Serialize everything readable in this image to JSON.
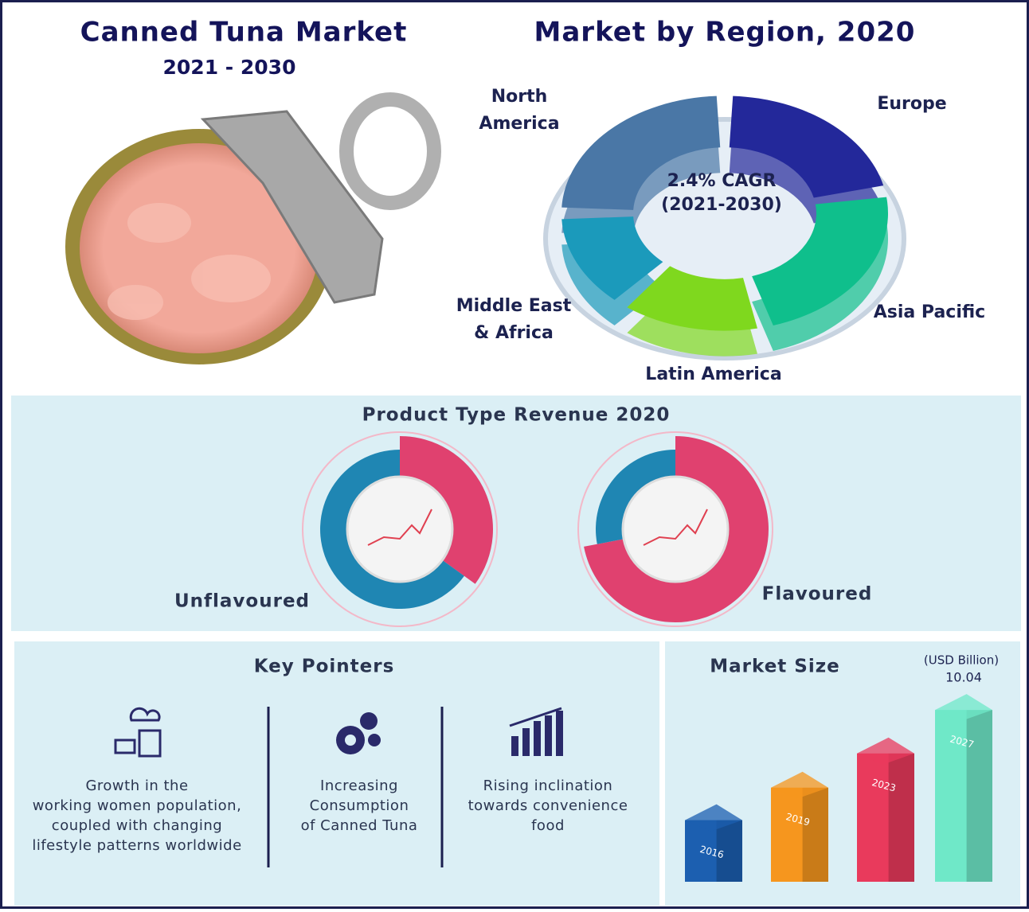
{
  "header": {
    "title": "Canned Tuna Market",
    "period": "2021 - 2030"
  },
  "region_chart": {
    "type": "pie",
    "title": "Market by Region, 2020",
    "center_label": [
      "2.4% CAGR",
      "(2021-2030)"
    ],
    "categories": [
      [
        "Europe"
      ],
      [
        "Asia Pacific"
      ],
      [
        "Latin America"
      ],
      [
        "Middle East",
        "& Africa"
      ],
      [
        "North",
        "America"
      ]
    ],
    "values": [
      22,
      24,
      15,
      14,
      25
    ],
    "colors": [
      "#23289a",
      "#0fbf8c",
      "#7fd81e",
      "#1b9abb",
      "#4a77a6"
    ]
  },
  "product_type": {
    "title": "Product Type Revenue 2020",
    "charts": [
      {
        "type": "pie",
        "name": "Unflavoured",
        "values": [
          35,
          65
        ],
        "colors": [
          "#e0416f",
          "#1f86b3"
        ]
      },
      {
        "type": "pie",
        "name": "Flavoured",
        "values": [
          72,
          28
        ],
        "colors": [
          "#e0416f",
          "#1f86b3"
        ]
      }
    ]
  },
  "key_pointers": {
    "title": "Key Pointers",
    "items": [
      [
        "Growth in the",
        "working women population,",
        "coupled with changing",
        "lifestyle patterns worldwide"
      ],
      [
        "Increasing",
        "Consumption",
        "of Canned Tuna"
      ],
      [
        "Rising inclination",
        "towards convenience",
        "food"
      ]
    ]
  },
  "market_size": {
    "type": "bar",
    "title": "Market Size",
    "unit": "(USD Billion)",
    "categories": [
      "2016",
      "2019",
      "2023",
      "2027"
    ],
    "values": [
      3.6,
      5.5,
      7.5,
      10.04
    ],
    "colors": [
      "#1c5fb0",
      "#f6961e",
      "#e93a5c",
      "#6fe8c8"
    ]
  }
}
